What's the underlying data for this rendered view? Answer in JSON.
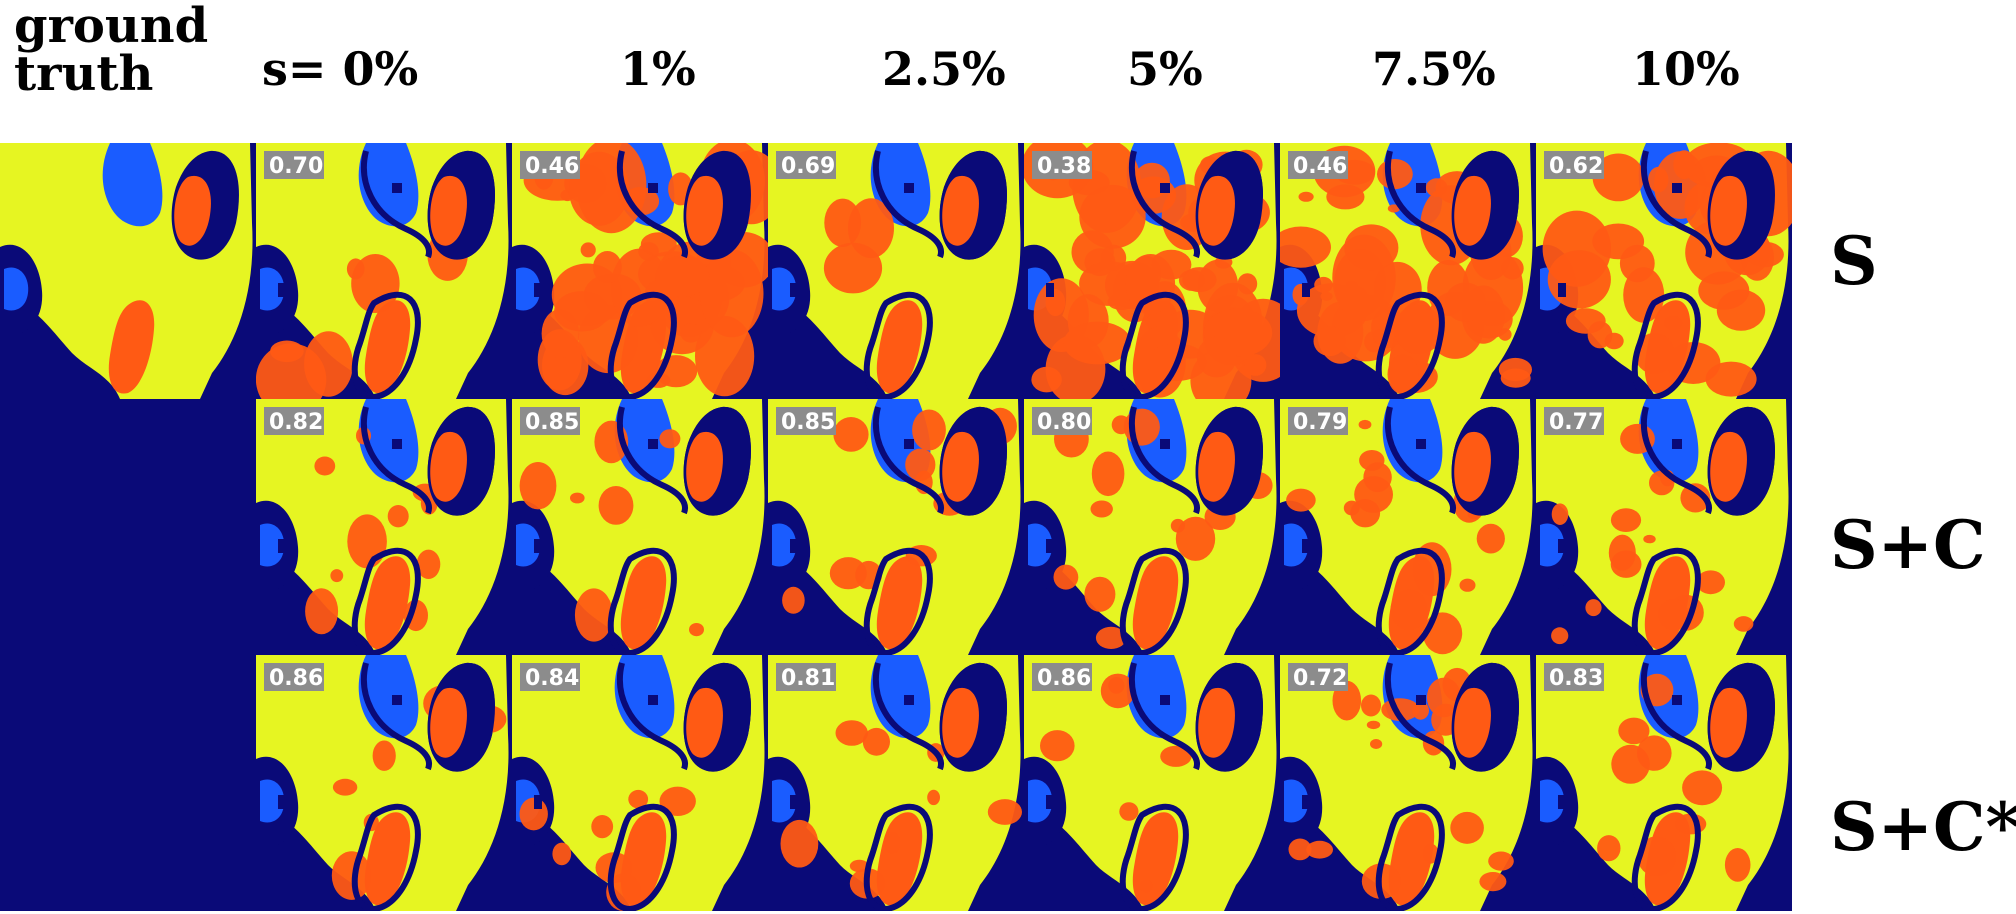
{
  "header": {
    "ground_truth": [
      "ground",
      "truth"
    ],
    "columns": [
      "s= 0%",
      "1%",
      "2.5%",
      "5%",
      "7.5%",
      "10%"
    ]
  },
  "rows": [
    {
      "label": "S",
      "scores": [
        "0.70",
        "0.46",
        "0.69",
        "0.38",
        "0.46",
        "0.62"
      ]
    },
    {
      "label": "S+C",
      "scores": [
        "0.82",
        "0.85",
        "0.85",
        "0.80",
        "0.79",
        "0.77"
      ]
    },
    {
      "label": "S+C*",
      "scores": [
        "0.86",
        "0.84",
        "0.81",
        "0.86",
        "0.72",
        "0.83"
      ]
    }
  ],
  "colors": {
    "background": "#0a0a78",
    "yellow": "#e6f522",
    "orange": "#ff5a14",
    "blue": "#1a5cff",
    "badge": "#8c8c8c"
  }
}
